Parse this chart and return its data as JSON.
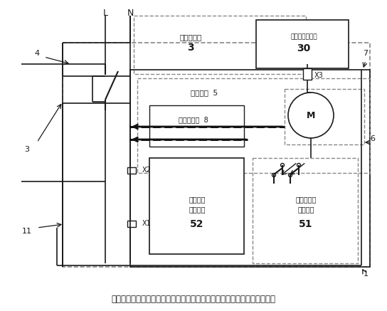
{
  "caption": "图为该发明的具有自动重合闸的预付费电表专用断路器的整体结构示意框图",
  "bg_color": "#ffffff",
  "fig_width": 5.44,
  "fig_height": 4.37,
  "dpi": 100,
  "text": {
    "L": "L",
    "N": "N",
    "prepay_line1": "预付费电表",
    "prepay_num": "3",
    "ctrl_v_line1": "控制电压输出端",
    "ctrl_v_num": "30",
    "ctrl_ckt": "控制电路  5",
    "trip": "分离脱扣器  8",
    "overload_line1": "欠费脱电",
    "overload_line2": "驱动电路",
    "overload_num": "52",
    "reclose_line1": "自动重合闸",
    "reclose_line2": "驱动电路",
    "reclose_num": "51",
    "motor": "M",
    "X1": "X1",
    "X2": "X2",
    "X3": "X3",
    "label_4": "4",
    "label_3": "3",
    "label_11": "11",
    "label_7": "7",
    "label_6": "6",
    "label_1": "1"
  },
  "colors": {
    "line": "#1a1a1a",
    "dashed_box": "#888888",
    "solid_box": "#1a1a1a",
    "dashed_arrow": "#111111"
  }
}
